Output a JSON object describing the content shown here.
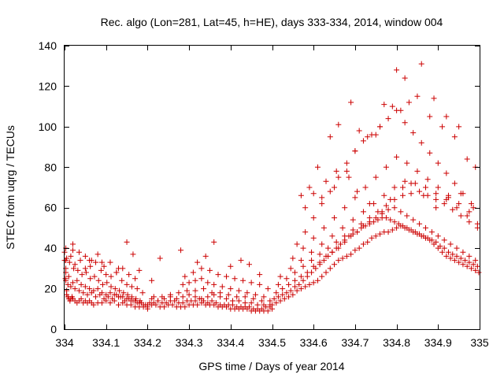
{
  "chart_data": {
    "type": "scatter",
    "title": "Rec. algo (Lon=281, Lat=45, h=HE), days 333-334, 2014, window 004",
    "xlabel": "GPS time / Days of year 2014",
    "ylabel": "STEC from uqrg / TECUs",
    "xlim": [
      334,
      335
    ],
    "ylim": [
      0,
      140
    ],
    "xticks": [
      334,
      334.1,
      334.2,
      334.3,
      334.4,
      334.5,
      334.6,
      334.7,
      334.8,
      334.9,
      335
    ],
    "xtick_labels": [
      "334",
      "334.1",
      "334.2",
      "334.3",
      "334.4",
      "334.5",
      "334.6",
      "334.7",
      "334.8",
      "334.9",
      "335"
    ],
    "yticks": [
      0,
      20,
      40,
      60,
      80,
      100,
      120,
      140
    ],
    "ytick_labels": [
      "0",
      "20",
      "40",
      "60",
      "80",
      "100",
      "120",
      "140"
    ],
    "grid": false,
    "legend": "none",
    "marker": "plus",
    "color": "#cc0000",
    "series": [
      {
        "x": [
          334.0,
          334.0,
          334.003,
          334.003,
          334.005,
          334.005,
          334.008,
          334.01,
          334.013,
          334.015,
          334.018,
          334.02,
          334.025,
          334.03,
          334.035,
          334.04,
          334.045,
          334.05,
          334.055,
          334.06,
          334.065,
          334.07,
          334.08,
          334.09,
          334.1,
          334.11,
          334.12,
          334.13,
          334.14,
          334.15,
          334.16,
          334.17,
          334.18,
          334.19,
          334.2,
          334.003,
          334.008,
          334.015,
          334.025,
          334.035,
          334.045,
          334.055,
          334.065,
          334.075,
          334.085,
          334.095,
          334.105,
          334.115,
          334.125,
          334.135,
          334.145,
          334.155,
          334.165,
          334.175,
          334.185,
          334.195,
          334.003,
          334.01,
          334.02,
          334.03,
          334.04,
          334.05,
          334.06,
          334.07,
          334.08,
          334.09,
          334.1,
          334.11,
          334.12,
          334.13,
          334.14,
          334.15,
          334.16,
          334.17,
          334.18,
          334.19,
          334.2,
          334.003,
          334.012,
          334.022,
          334.032,
          334.042,
          334.052,
          334.062,
          334.072,
          334.082,
          334.092,
          334.102,
          334.112,
          334.122,
          334.132,
          334.142,
          334.152,
          334.162,
          334.172,
          334.182,
          334.002,
          334.015,
          334.025,
          334.038,
          334.05,
          334.062,
          334.075,
          334.088,
          334.1,
          334.112,
          334.125,
          334.138,
          334.15,
          334.162,
          334.175,
          334.188,
          334.005,
          334.02,
          334.035,
          334.05,
          334.065,
          334.08,
          334.095,
          334.11,
          334.125,
          334.14,
          334.155,
          334.17,
          334.02,
          334.06,
          334.09,
          334.13,
          334.15,
          334.165,
          334.18,
          334.21,
          334.2,
          334.21,
          334.22,
          334.23,
          334.24,
          334.25,
          334.26,
          334.27,
          334.28,
          334.29,
          334.3,
          334.31,
          334.32,
          334.33,
          334.34,
          334.35,
          334.36,
          334.37,
          334.38,
          334.39,
          334.4,
          334.41,
          334.42,
          334.43,
          334.44,
          334.45,
          334.46,
          334.47,
          334.48,
          334.49,
          334.5,
          334.205,
          334.215,
          334.225,
          334.235,
          334.245,
          334.255,
          334.265,
          334.275,
          334.285,
          334.295,
          334.305,
          334.315,
          334.325,
          334.335,
          334.345,
          334.355,
          334.365,
          334.375,
          334.385,
          334.395,
          334.405,
          334.415,
          334.425,
          334.435,
          334.445,
          334.455,
          334.465,
          334.475,
          334.485,
          334.495,
          334.21,
          334.225,
          334.24,
          334.255,
          334.27,
          334.285,
          334.3,
          334.315,
          334.33,
          334.345,
          334.36,
          334.375,
          334.39,
          334.405,
          334.42,
          334.435,
          334.45,
          334.465,
          334.48,
          334.495,
          334.215,
          334.235,
          334.255,
          334.275,
          334.295,
          334.315,
          334.335,
          334.355,
          334.375,
          334.395,
          334.415,
          334.435,
          334.455,
          334.475,
          334.495,
          334.285,
          334.3,
          334.315,
          334.33,
          334.345,
          334.36,
          334.38,
          334.4,
          334.42,
          334.44,
          334.46,
          334.48,
          334.29,
          334.31,
          334.33,
          334.35,
          334.37,
          334.39,
          334.41,
          334.43,
          334.45,
          334.47,
          334.49,
          334.23,
          334.28,
          334.32,
          334.34,
          334.36,
          334.4,
          334.425,
          334.445,
          334.47,
          334.5,
          334.51,
          334.52,
          334.53,
          334.54,
          334.55,
          334.56,
          334.57,
          334.58,
          334.59,
          334.6,
          334.61,
          334.62,
          334.63,
          334.64,
          334.65,
          334.66,
          334.67,
          334.68,
          334.69,
          334.7,
          334.71,
          334.72,
          334.73,
          334.74,
          334.75,
          334.76,
          334.77,
          334.78,
          334.79,
          334.8,
          334.81,
          334.82,
          334.83,
          334.84,
          334.85,
          334.86,
          334.87,
          334.88,
          334.89,
          334.9,
          334.91,
          334.92,
          334.93,
          334.94,
          334.95,
          334.96,
          334.97,
          334.98,
          334.99,
          334.998,
          334.505,
          334.515,
          334.525,
          334.535,
          334.545,
          334.555,
          334.565,
          334.575,
          334.585,
          334.595,
          334.605,
          334.615,
          334.625,
          334.635,
          334.645,
          334.655,
          334.665,
          334.675,
          334.685,
          334.695,
          334.705,
          334.715,
          334.725,
          334.735,
          334.745,
          334.755,
          334.765,
          334.775,
          334.785,
          334.795,
          334.805,
          334.815,
          334.825,
          334.835,
          334.845,
          334.855,
          334.865,
          334.875,
          334.885,
          334.895,
          334.905,
          334.915,
          334.925,
          334.935,
          334.945,
          334.955,
          334.965,
          334.975,
          334.985,
          334.995,
          334.51,
          334.525,
          334.54,
          334.555,
          334.57,
          334.585,
          334.6,
          334.615,
          334.63,
          334.645,
          334.66,
          334.675,
          334.69,
          334.705,
          334.72,
          334.735,
          334.75,
          334.765,
          334.78,
          334.795,
          334.81,
          334.825,
          334.84,
          334.855,
          334.87,
          334.885,
          334.9,
          334.915,
          334.93,
          334.945,
          334.96,
          334.975,
          334.99,
          334.515,
          334.535,
          334.555,
          334.575,
          334.595,
          334.615,
          334.635,
          334.655,
          334.675,
          334.695,
          334.715,
          334.735,
          334.755,
          334.775,
          334.795,
          334.815,
          334.835,
          334.855,
          334.875,
          334.895,
          334.915,
          334.935,
          334.955,
          334.975,
          334.995,
          334.52,
          334.545,
          334.57,
          334.595,
          334.62,
          334.645,
          334.67,
          334.695,
          334.72,
          334.745,
          334.77,
          334.795,
          334.82,
          334.845,
          334.87,
          334.895,
          334.92,
          334.945,
          334.97,
          334.995,
          334.55,
          334.575,
          334.6,
          334.625,
          334.65,
          334.675,
          334.7,
          334.725,
          334.75,
          334.775,
          334.8,
          334.825,
          334.85,
          334.875,
          334.9,
          334.925,
          334.95,
          334.975,
          334.56,
          334.58,
          334.6,
          334.62,
          334.64,
          334.66,
          334.68,
          334.7,
          334.72,
          334.74,
          334.76,
          334.78,
          334.8,
          334.82,
          334.84,
          334.86,
          334.88,
          334.9,
          334.92,
          334.94,
          334.96,
          334.98,
          334.58,
          334.62,
          334.65,
          334.68,
          334.7,
          334.73,
          334.76,
          334.79,
          334.81,
          334.83,
          334.85,
          334.88,
          334.91,
          334.94,
          334.57,
          334.59,
          334.61,
          334.64,
          334.66,
          334.69,
          334.71,
          334.75,
          334.77,
          334.8,
          334.82,
          334.86,
          334.89,
          334.92,
          334.95,
          334.97,
          334.99,
          334.6,
          334.63,
          334.655,
          334.685,
          334.705,
          334.735,
          334.765,
          334.785,
          334.815,
          334.835,
          334.865,
          334.895,
          334.925,
          334.955,
          334.985
        ],
        "y": [
          38,
          34,
          28,
          24,
          19,
          17,
          16,
          15,
          14,
          15,
          16,
          15,
          14,
          13,
          14,
          15,
          13,
          14,
          13,
          14,
          13,
          12,
          13,
          13,
          14,
          13,
          14,
          12,
          13,
          12,
          12,
          11,
          11,
          11,
          10,
          30,
          22,
          21,
          20,
          19,
          18,
          17,
          18,
          16,
          17,
          15,
          16,
          15,
          17,
          16,
          14,
          15,
          14,
          13,
          13,
          12,
          34,
          26,
          23,
          24,
          22,
          21,
          20,
          19,
          20,
          18,
          17,
          18,
          17,
          16,
          16,
          15,
          14,
          14,
          13,
          12,
          12,
          40,
          33,
          30,
          29,
          27,
          28,
          25,
          26,
          24,
          22,
          23,
          21,
          20,
          19,
          18,
          17,
          16,
          15,
          14,
          25,
          36,
          32,
          34,
          30,
          31,
          33,
          29,
          27,
          26,
          28,
          24,
          22,
          21,
          20,
          18,
          35,
          42,
          38,
          36,
          34,
          37,
          31,
          33,
          28,
          30,
          27,
          25,
          39,
          34,
          33,
          30,
          43,
          37,
          29,
          24,
          11,
          12,
          12,
          11,
          11,
          12,
          12,
          11,
          11,
          11,
          12,
          12,
          12,
          13,
          12,
          12,
          12,
          11,
          11,
          11,
          10,
          10,
          10,
          10,
          10,
          9,
          9,
          9,
          9,
          9,
          10,
          13,
          13,
          14,
          13,
          13,
          14,
          14,
          13,
          13,
          14,
          14,
          14,
          15,
          14,
          13,
          14,
          13,
          12,
          12,
          12,
          12,
          11,
          11,
          11,
          11,
          10,
          10,
          10,
          11,
          11,
          15,
          14,
          15,
          16,
          15,
          16,
          17,
          16,
          15,
          16,
          17,
          16,
          15,
          14,
          14,
          13,
          13,
          12,
          12,
          12,
          16,
          16,
          17,
          18,
          19,
          19,
          20,
          18,
          18,
          17,
          16,
          16,
          15,
          14,
          14,
          22,
          23,
          24,
          25,
          23,
          22,
          21,
          20,
          19,
          18,
          17,
          16,
          26,
          28,
          30,
          29,
          27,
          26,
          25,
          24,
          23,
          22,
          20,
          35,
          39,
          33,
          36,
          43,
          31,
          34,
          32,
          27,
          12,
          13,
          14,
          15,
          16,
          17,
          19,
          20,
          21,
          22,
          23,
          24,
          26,
          28,
          30,
          32,
          34,
          35,
          36,
          37,
          39,
          40,
          42,
          43,
          45,
          46,
          47,
          48,
          48,
          49,
          50,
          51,
          50,
          49,
          48,
          47,
          46,
          45,
          44,
          42,
          40,
          38,
          36,
          35,
          34,
          33,
          32,
          31,
          30,
          29,
          28,
          15,
          16,
          17,
          18,
          19,
          21,
          22,
          24,
          26,
          28,
          30,
          32,
          34,
          36,
          38,
          40,
          42,
          44,
          46,
          47,
          48,
          50,
          51,
          52,
          53,
          54,
          55,
          55,
          54,
          53,
          52,
          51,
          50,
          49,
          48,
          47,
          46,
          45,
          44,
          43,
          41,
          40,
          38,
          37,
          36,
          35,
          34,
          33,
          32,
          31,
          18,
          20,
          22,
          24,
          26,
          28,
          31,
          33,
          36,
          38,
          40,
          43,
          46,
          48,
          51,
          53,
          55,
          57,
          59,
          60,
          58,
          56,
          54,
          52,
          50,
          48,
          46,
          44,
          42,
          40,
          38,
          36,
          34,
          22,
          25,
          28,
          31,
          34,
          37,
          40,
          43,
          46,
          49,
          52,
          55,
          58,
          61,
          64,
          66,
          67,
          68,
          66,
          64,
          62,
          59,
          56,
          53,
          50,
          26,
          30,
          34,
          38,
          42,
          46,
          50,
          54,
          58,
          62,
          66,
          70,
          73,
          72,
          70,
          67,
          64,
          60,
          56,
          52,
          35,
          40,
          45,
          50,
          55,
          60,
          65,
          70,
          75,
          80,
          85,
          82,
          78,
          74,
          70,
          66,
          62,
          58,
          42,
          48,
          55,
          62,
          68,
          75,
          82,
          88,
          93,
          96,
          100,
          104,
          108,
          102,
          97,
          92,
          87,
          82,
          77,
          72,
          67,
          62,
          60,
          65,
          70,
          78,
          88,
          95,
          100,
          110,
          108,
          112,
          115,
          105,
          100,
          95,
          66,
          70,
          80,
          95,
          101,
          112,
          98,
          96,
          111,
          128,
          124,
          131,
          114,
          105,
          100,
          84,
          80,
          67,
          73,
          78,
          75,
          68,
          62,
          58,
          64,
          70,
          72,
          66,
          60,
          65,
          67,
          60
        ]
      }
    ]
  }
}
